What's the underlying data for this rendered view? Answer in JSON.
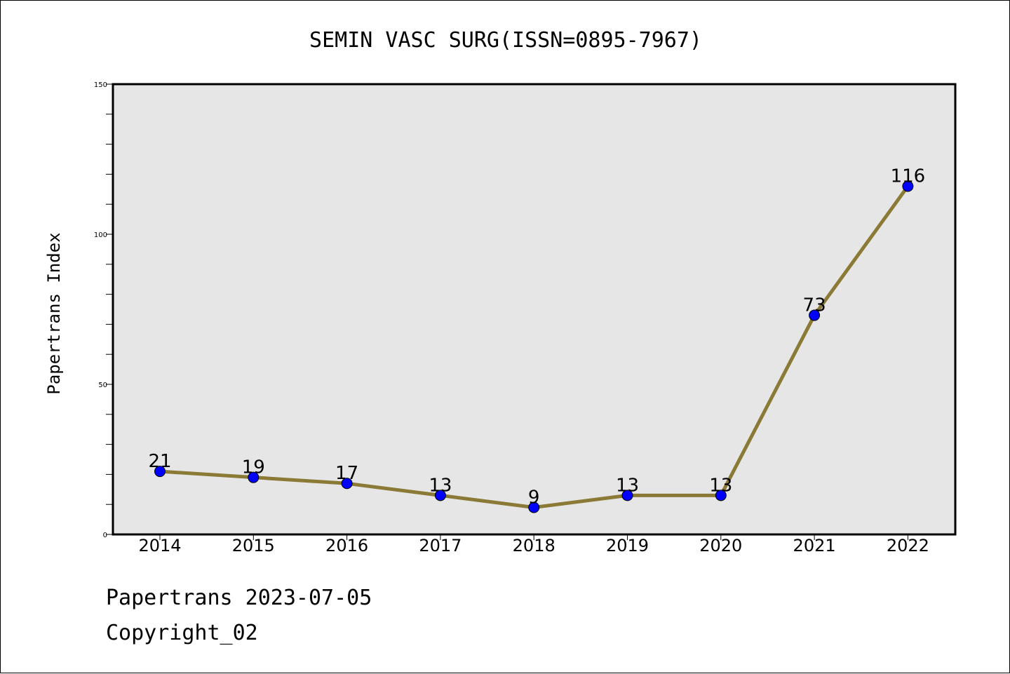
{
  "chart_data": {
    "type": "line",
    "title": "SEMIN VASC SURG(ISSN=0895-7967)",
    "xlabel": "",
    "ylabel": "Papertrans Index",
    "categories": [
      "2014",
      "2015",
      "2016",
      "2017",
      "2018",
      "2019",
      "2020",
      "2021",
      "2022"
    ],
    "series": [
      {
        "values": [
          21,
          19,
          17,
          13,
          9,
          13,
          13,
          73,
          116
        ]
      }
    ],
    "ylim": [
      0,
      150
    ],
    "yticks": [
      0,
      50,
      100,
      150
    ],
    "grid": false,
    "legend": "none",
    "data_labels": true,
    "colors": {
      "line": "#8b7a36",
      "marker": "#0000ff",
      "plot_background": "#e6e6e6",
      "page_background": "#ffffff"
    }
  },
  "footer": {
    "date_line": "Papertrans 2023-07-05",
    "copyright": "Copyright_02"
  }
}
